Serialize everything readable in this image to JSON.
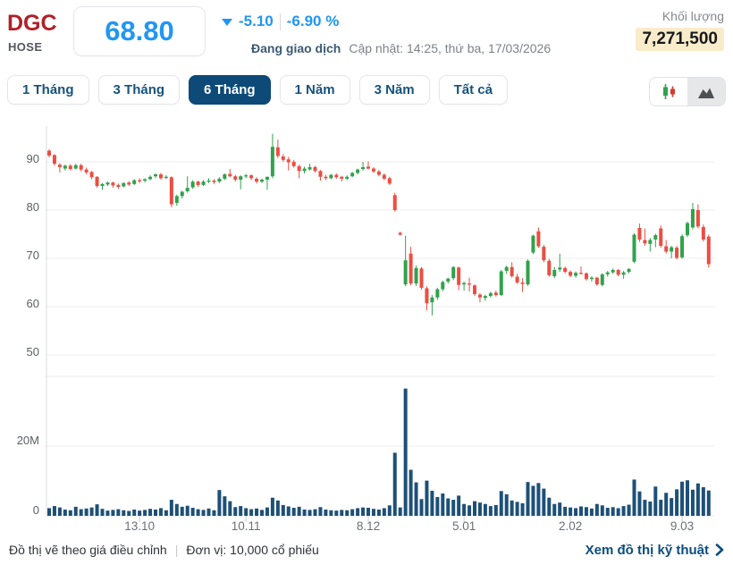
{
  "header": {
    "ticker": "DGC",
    "exchange": "HOSE",
    "price": "68.80",
    "change": "-5.10",
    "change_percent": "-6.90 %",
    "status": "Đang giao dịch",
    "updated": "Cập nhật: 14:25, thứ ba, 17/03/2026",
    "volume_label": "Khối lượng",
    "volume_value": "7,271,500"
  },
  "ranges": [
    {
      "label": "1 Tháng",
      "active": false
    },
    {
      "label": "3 Tháng",
      "active": false
    },
    {
      "label": "6 Tháng",
      "active": true
    },
    {
      "label": "1 Năm",
      "active": false
    },
    {
      "label": "3 Năm",
      "active": false
    },
    {
      "label": "Tất cả",
      "active": false
    }
  ],
  "view_toggle": {
    "options": [
      "candlestick-chart",
      "area-chart"
    ],
    "highlighted": "area-chart"
  },
  "footer": {
    "note_price": "Đồ thị vẽ theo giá điều chỉnh",
    "separator": "|",
    "note_unit": "Đơn vị: 10,000 cổ phiếu",
    "link": "Xem đồ thị kỹ thuật"
  },
  "colors": {
    "up": "#31a24c",
    "down": "#ec4d42",
    "volume_bar": "#1d5077",
    "accent_blue": "#2196f3",
    "ticker_red": "#b02028",
    "active_navy": "#0d4a77",
    "highlight_bg": "#f9ecca",
    "grid": "#eceef1",
    "axis": "#d8dbdf",
    "tick_mark": "#c9ccd0",
    "y_label": "#5a5e64",
    "x_label": "#6b7076"
  },
  "chart_data": {
    "type": "candlestick",
    "title": "DGC daily price (6 months) with volume",
    "price_axis": {
      "ticks": [
        90,
        80,
        70,
        60,
        50
      ],
      "range": [
        49,
        97.5
      ]
    },
    "volume_axis": {
      "ticks": [
        {
          "label": "20M",
          "value": 20
        },
        {
          "label": "0",
          "value": 0
        }
      ],
      "range": [
        0,
        42
      ],
      "unit": "million shares"
    },
    "x_ticks": [
      {
        "label": "13.10",
        "index": 17
      },
      {
        "label": "10.11",
        "index": 37
      },
      {
        "label": "8.12",
        "index": 60
      },
      {
        "label": "5.01",
        "index": 78
      },
      {
        "label": "2.02",
        "index": 98
      },
      {
        "label": "9.03",
        "index": 119
      }
    ],
    "candles_format": [
      "open",
      "high",
      "low",
      "close",
      "volume_millions"
    ],
    "candles": [
      [
        92.3,
        92.6,
        90.9,
        91.3,
        2.2
      ],
      [
        91.4,
        91.6,
        89.2,
        89.6,
        2.8
      ],
      [
        89.4,
        89.7,
        87.8,
        88.9,
        2.4
      ],
      [
        88.6,
        89.4,
        88.2,
        89.2,
        1.8
      ],
      [
        89.2,
        89.5,
        88.2,
        88.5,
        1.6
      ],
      [
        88.6,
        89.6,
        88.4,
        89.3,
        2.6
      ],
      [
        89.3,
        89.6,
        88.0,
        88.4,
        1.9
      ],
      [
        88.4,
        88.8,
        87.4,
        87.8,
        2.1
      ],
      [
        87.9,
        88.1,
        86.4,
        86.8,
        2.4
      ],
      [
        86.9,
        87.0,
        84.6,
        85.0,
        3.3
      ],
      [
        85.0,
        85.6,
        84.2,
        85.4,
        2.0
      ],
      [
        85.3,
        85.9,
        85.0,
        85.7,
        1.5
      ],
      [
        85.7,
        85.9,
        84.6,
        85.1,
        1.7
      ],
      [
        85.2,
        85.5,
        84.4,
        84.8,
        1.9
      ],
      [
        84.9,
        85.8,
        84.7,
        85.6,
        1.6
      ],
      [
        85.7,
        86.0,
        85.0,
        85.3,
        1.4
      ],
      [
        85.4,
        86.4,
        85.2,
        86.2,
        1.8
      ],
      [
        86.2,
        86.6,
        85.6,
        86.0,
        1.5
      ],
      [
        86.1,
        86.6,
        85.7,
        86.4,
        1.7
      ],
      [
        86.4,
        87.2,
        86.2,
        86.9,
        2.0
      ],
      [
        87.0,
        87.6,
        86.6,
        87.4,
        1.8
      ],
      [
        87.4,
        87.7,
        86.3,
        86.6,
        2.2
      ],
      [
        86.7,
        87.2,
        86.4,
        86.9,
        1.6
      ],
      [
        86.8,
        87.0,
        80.6,
        81.2,
        4.6
      ],
      [
        81.5,
        83.2,
        80.9,
        82.9,
        3.4
      ],
      [
        82.9,
        84.0,
        82.4,
        83.8,
        2.6
      ],
      [
        83.9,
        87.0,
        83.6,
        84.6,
        2.9
      ],
      [
        84.7,
        86.2,
        84.4,
        85.9,
        2.3
      ],
      [
        85.9,
        86.1,
        84.8,
        85.2,
        1.9
      ],
      [
        85.2,
        86.2,
        85.0,
        85.9,
        1.7
      ],
      [
        86.0,
        86.6,
        85.6,
        86.1,
        2.1
      ],
      [
        86.1,
        86.4,
        85.4,
        85.8,
        1.6
      ],
      [
        85.9,
        86.8,
        85.6,
        86.5,
        7.4
      ],
      [
        86.5,
        87.6,
        86.2,
        87.4,
        5.6
      ],
      [
        87.5,
        88.5,
        86.8,
        87.0,
        4.2
      ],
      [
        87.0,
        87.3,
        85.9,
        86.3,
        2.5
      ],
      [
        86.3,
        87.2,
        84.3,
        87.0,
        2.8
      ],
      [
        87.0,
        87.5,
        86.6,
        87.2,
        2.2
      ],
      [
        87.2,
        87.4,
        86.2,
        86.6,
        1.9
      ],
      [
        86.5,
        86.8,
        85.5,
        85.9,
        2.1
      ],
      [
        85.9,
        86.5,
        85.6,
        86.3,
        1.7
      ],
      [
        86.3,
        86.9,
        84.2,
        86.9,
        2.4
      ],
      [
        87.0,
        95.8,
        86.6,
        93.1,
        5.2
      ],
      [
        93.0,
        94.6,
        90.8,
        91.2,
        4.4
      ],
      [
        91.1,
        91.6,
        90.0,
        90.4,
        3.1
      ],
      [
        90.5,
        91.0,
        88.2,
        89.9,
        2.7
      ],
      [
        90.0,
        90.4,
        88.8,
        89.1,
        2.3
      ],
      [
        89.1,
        89.4,
        86.6,
        88.1,
        2.6
      ],
      [
        88.1,
        89.0,
        87.6,
        88.6,
        1.8
      ],
      [
        88.4,
        89.6,
        88.2,
        88.9,
        1.7
      ],
      [
        88.9,
        89.2,
        87.8,
        88.1,
        1.9
      ],
      [
        88.1,
        88.3,
        86.1,
        86.9,
        2.5
      ],
      [
        86.9,
        87.3,
        86.2,
        86.6,
        1.8
      ],
      [
        86.6,
        87.5,
        86.4,
        87.3,
        1.6
      ],
      [
        87.3,
        87.6,
        86.5,
        86.8,
        1.5
      ],
      [
        86.9,
        87.1,
        85.9,
        86.5,
        1.7
      ],
      [
        86.5,
        87.2,
        86.2,
        86.9,
        1.6
      ],
      [
        87.0,
        87.9,
        86.8,
        87.7,
        1.9
      ],
      [
        87.7,
        88.6,
        87.4,
        88.4,
        2.2
      ],
      [
        88.5,
        90.0,
        88.2,
        88.9,
        2.4
      ],
      [
        89.0,
        90.1,
        88.4,
        88.6,
        2.3
      ],
      [
        88.6,
        88.9,
        87.7,
        88.0,
        2.0
      ],
      [
        88.0,
        88.3,
        87.0,
        87.3,
        1.8
      ],
      [
        87.3,
        87.6,
        86.2,
        86.5,
        2.2
      ],
      [
        86.6,
        86.9,
        85.2,
        85.5,
        3.0
      ],
      [
        83.1,
        83.6,
        79.7,
        80.0,
        18.1
      ],
      [
        75.3,
        75.5,
        74.7,
        74.9,
        2.4
      ],
      [
        64.6,
        74.7,
        64.2,
        69.6,
        36.5
      ],
      [
        71.0,
        72.4,
        64.4,
        64.8,
        13.2
      ],
      [
        64.8,
        68.5,
        64.3,
        68.0,
        9.6
      ],
      [
        67.9,
        68.2,
        63.5,
        63.9,
        4.8
      ],
      [
        63.8,
        64.2,
        59.2,
        60.7,
        10.1
      ],
      [
        60.9,
        62.4,
        58.2,
        61.9,
        7.2
      ],
      [
        61.9,
        63.9,
        61.4,
        63.6,
        5.4
      ],
      [
        63.6,
        65.4,
        63.2,
        65.1,
        6.4
      ],
      [
        65.2,
        66.0,
        64.8,
        65.8,
        5.0
      ],
      [
        65.9,
        68.4,
        65.5,
        68.2,
        4.6
      ],
      [
        68.1,
        68.3,
        63.4,
        64.5,
        5.8
      ],
      [
        64.6,
        65.2,
        63.3,
        64.9,
        3.4
      ],
      [
        64.8,
        66.0,
        63.1,
        64.6,
        3.0
      ],
      [
        64.4,
        64.6,
        62.2,
        62.6,
        4.2
      ],
      [
        62.5,
        62.8,
        60.9,
        61.9,
        3.8
      ],
      [
        61.8,
        62.5,
        61.2,
        62.2,
        3.4
      ],
      [
        62.2,
        63.1,
        61.9,
        62.8,
        2.8
      ],
      [
        62.9,
        63.3,
        62.1,
        62.4,
        3.1
      ],
      [
        62.4,
        67.6,
        62.2,
        67.3,
        7.1
      ],
      [
        67.4,
        68.5,
        66.8,
        68.2,
        6.2
      ],
      [
        68.2,
        69.2,
        66.0,
        66.3,
        4.4
      ],
      [
        66.2,
        66.8,
        64.7,
        65.0,
        4.0
      ],
      [
        65.0,
        65.9,
        63.0,
        64.7,
        3.6
      ],
      [
        64.6,
        69.8,
        64.3,
        69.5,
        9.7
      ],
      [
        71.2,
        74.9,
        70.9,
        74.7,
        8.6
      ],
      [
        75.6,
        76.4,
        72.2,
        72.5,
        9.4
      ],
      [
        72.4,
        72.8,
        69.2,
        69.6,
        7.8
      ],
      [
        69.5,
        69.9,
        66.2,
        66.5,
        5.2
      ],
      [
        66.3,
        68.2,
        65.9,
        67.6,
        3.4
      ],
      [
        67.7,
        71.0,
        67.2,
        68.1,
        3.8
      ],
      [
        68.0,
        68.3,
        66.9,
        67.2,
        2.6
      ],
      [
        67.2,
        67.5,
        66.1,
        66.4,
        2.4
      ],
      [
        66.4,
        67.3,
        66.0,
        67.0,
        2.2
      ],
      [
        67.0,
        68.3,
        66.7,
        66.9,
        2.7
      ],
      [
        66.9,
        67.1,
        65.4,
        65.7,
        2.5
      ],
      [
        65.7,
        66.3,
        65.2,
        66.0,
        2.1
      ],
      [
        66.0,
        66.2,
        64.3,
        64.6,
        3.4
      ],
      [
        64.5,
        66.9,
        64.2,
        66.7,
        3.0
      ],
      [
        66.7,
        67.4,
        66.2,
        67.1,
        2.3
      ],
      [
        67.1,
        67.9,
        66.8,
        67.6,
        2.5
      ],
      [
        67.6,
        67.8,
        66.3,
        66.6,
        2.2
      ],
      [
        66.6,
        67.4,
        65.8,
        67.1,
        2.8
      ],
      [
        67.2,
        68.0,
        66.9,
        67.8,
        3.2
      ],
      [
        69.3,
        75.2,
        69.0,
        74.9,
        10.4
      ],
      [
        76.3,
        77.2,
        73.4,
        73.9,
        7.0
      ],
      [
        73.8,
        76.2,
        72.6,
        73.1,
        4.6
      ],
      [
        73.0,
        74.2,
        71.4,
        73.8,
        4.1
      ],
      [
        73.9,
        75.1,
        72.3,
        74.8,
        8.4
      ],
      [
        76.2,
        76.8,
        72.2,
        72.6,
        4.6
      ],
      [
        72.5,
        73.8,
        71.0,
        71.4,
        6.6
      ],
      [
        71.4,
        72.6,
        70.0,
        72.3,
        5.1
      ],
      [
        72.2,
        72.6,
        69.8,
        70.1,
        7.6
      ],
      [
        70.2,
        75.0,
        69.9,
        74.6,
        9.8
      ],
      [
        74.8,
        77.6,
        74.4,
        77.3,
        10.2
      ],
      [
        76.4,
        81.5,
        76.0,
        80.2,
        7.5
      ],
      [
        80.0,
        81.2,
        76.2,
        76.6,
        9.3
      ],
      [
        76.5,
        77.0,
        73.5,
        73.9,
        8.2
      ],
      [
        74.5,
        74.9,
        68.1,
        68.8,
        7.27
      ]
    ]
  }
}
